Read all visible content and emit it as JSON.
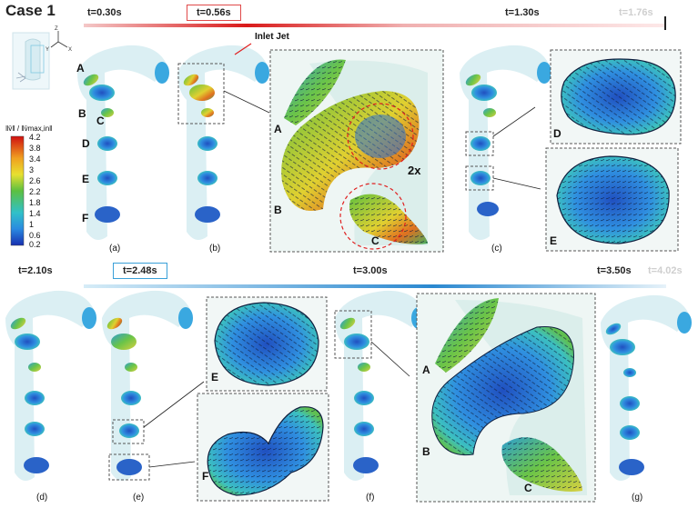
{
  "title": "Case 1",
  "top_times": [
    {
      "label": "t=0.30s",
      "style": "plain"
    },
    {
      "label": "t=0.56s",
      "style": "boxed",
      "color": "#e04a4a"
    },
    {
      "label": "t=1.30s",
      "style": "plain"
    },
    {
      "label": "t=1.76s",
      "style": "faded"
    }
  ],
  "bottom_times": [
    {
      "label": "t=2.10s",
      "style": "plain"
    },
    {
      "label": "t=2.48s",
      "style": "boxed",
      "color": "#3aa0d8"
    },
    {
      "label": "t=3.00s",
      "style": "plain"
    },
    {
      "label": "t=3.50s",
      "style": "plain"
    },
    {
      "label": "t=4.02s",
      "style": "faded"
    }
  ],
  "inlet_jet": "Inlet Jet",
  "zoom_factor": "2x",
  "colorbar": {
    "title": "‖v̄‖ / ‖v̄max,in‖",
    "ticks": [
      "4.2",
      "3.8",
      "3.4",
      "3",
      "2.6",
      "2.2",
      "1.8",
      "1.4",
      "1",
      "0.6",
      "0.2"
    ]
  },
  "panel_labels": [
    "(a)",
    "(b)",
    "(c)",
    "(d)",
    "(e)",
    "(f)",
    "(g)"
  ],
  "section_letters": [
    "A",
    "B",
    "C",
    "D",
    "E",
    "F"
  ],
  "colors": {
    "vessel": "#cfe9ef",
    "slice_blue": "#2a63c8",
    "slice_cyan": "#39b8d8",
    "slice_green": "#62c244",
    "slice_yellow": "#e8d23a",
    "timeline_red": "#d92020",
    "timeline_blue": "#2a88d0"
  }
}
